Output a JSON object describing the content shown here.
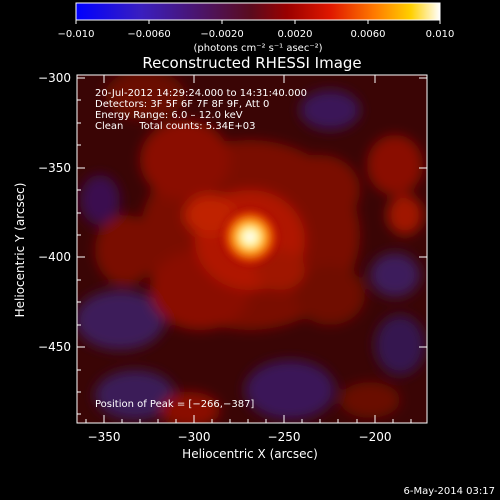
{
  "colorbar": {
    "ticks": [
      "−0.010",
      "−0.0060",
      "−0.0020",
      "0.0020",
      "0.0060",
      "0.010"
    ],
    "units": "(photons cm⁻² s⁻¹ asec⁻²)"
  },
  "plot": {
    "title": "Reconstructed RHESSI Image",
    "info": [
      "20-Jul-2012 14:29:24.000 to 14:31:40.000",
      "Detectors: 3F 5F 6F 7F 8F 9F, Att 0",
      "Energy Range: 6.0 – 12.0 keV",
      "Clean     Total counts: 5.34E+03"
    ],
    "peak_label": "Position of Peak = [−266,−387]",
    "xlabel": "Heliocentric X (arcsec)",
    "ylabel": "Heliocentric Y (arcsec)",
    "xticks": [
      "−350",
      "−300",
      "−250",
      "−200"
    ],
    "yticks": [
      "−300",
      "−350",
      "−400",
      "−450"
    ],
    "xrange": [
      -365,
      -172
    ],
    "yrange": [
      -292,
      -490
    ],
    "peak": [
      -266,
      -387
    ]
  },
  "footer": {
    "date": "6-May-2014 03:17"
  }
}
